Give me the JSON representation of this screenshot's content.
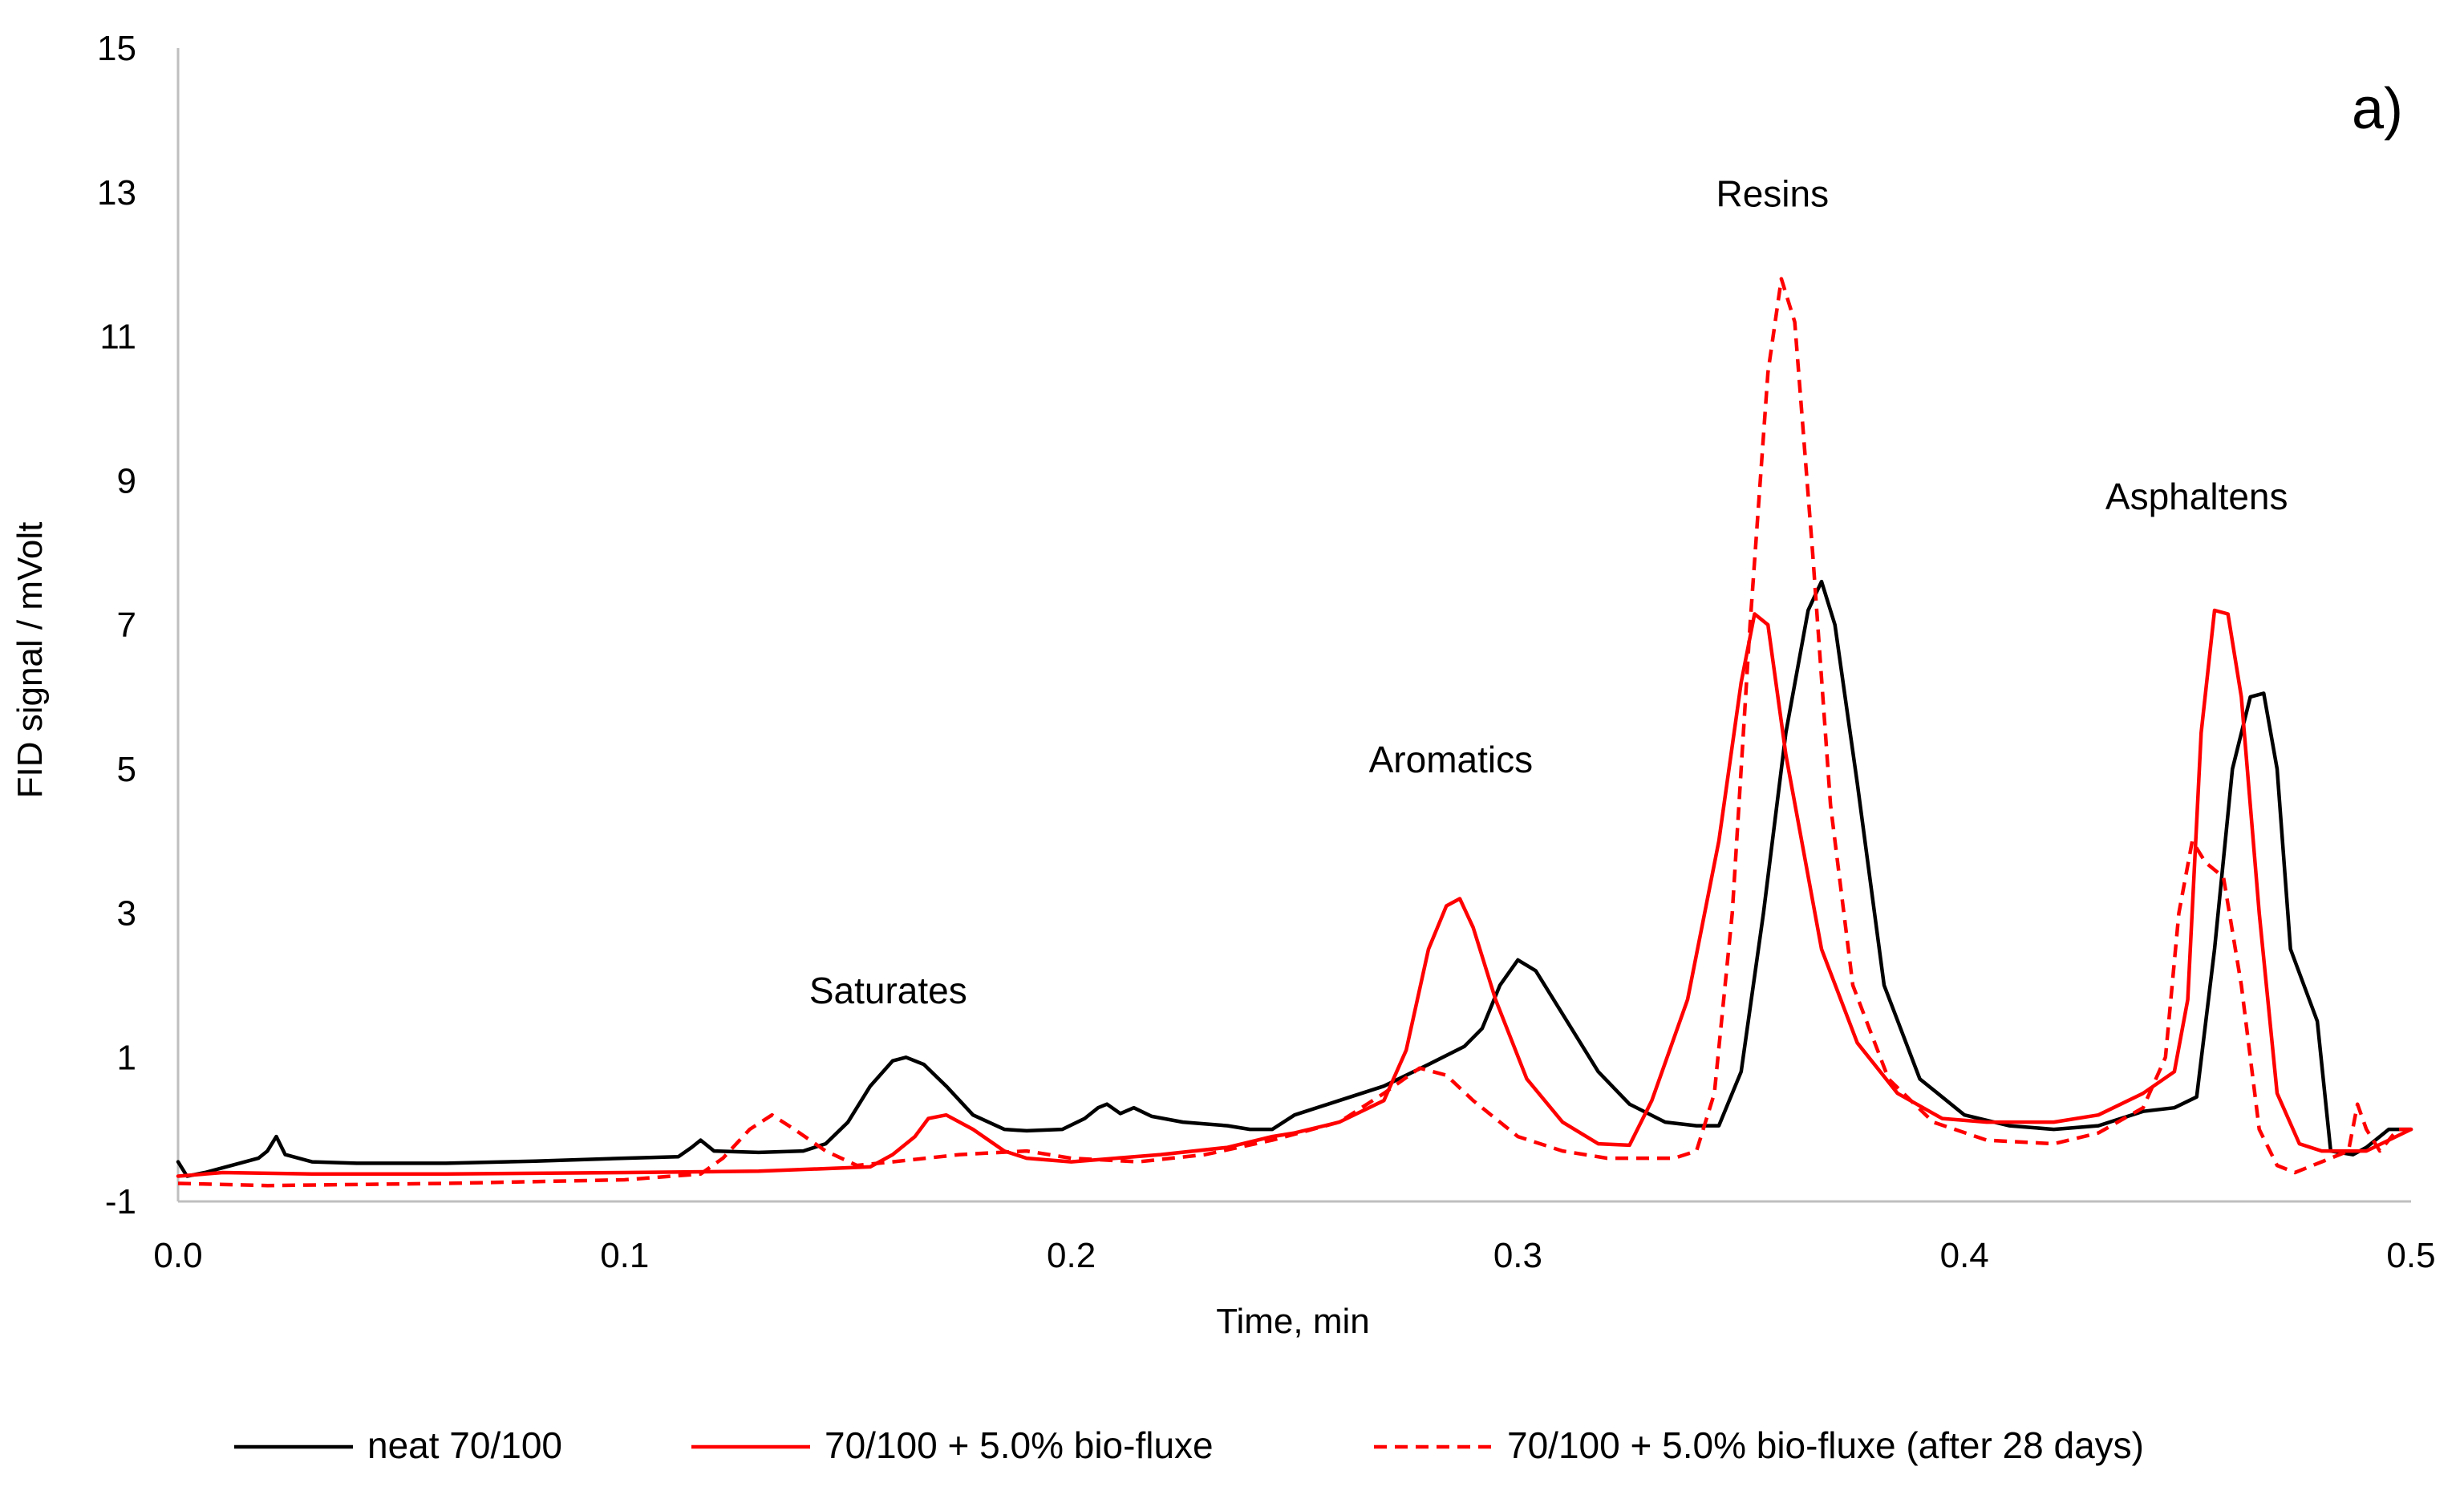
{
  "chart_data": {
    "type": "line",
    "title": "",
    "xlabel": "Time, min",
    "ylabel": "FID signal / mVolt",
    "xlim": [
      0,
      0.5
    ],
    "ylim": [
      -1,
      15
    ],
    "xticks": [
      0,
      0.1,
      0.2,
      0.3,
      0.4,
      0.5
    ],
    "xtick_labels": [
      "0.0",
      "0.1",
      "0.2",
      "0.3",
      "0.4",
      "0.5"
    ],
    "yticks": [
      -1,
      1,
      3,
      5,
      7,
      9,
      11,
      13,
      15
    ],
    "ytick_labels": [
      "-1",
      "1",
      "3",
      "5",
      "7",
      "9",
      "11",
      "13",
      "15"
    ],
    "grid": false,
    "legend_position": "bottom",
    "panel_label": "a)",
    "annotations": [
      {
        "text": "Saturates",
        "x": 0.159,
        "y": 1.75
      },
      {
        "text": "Aromatics",
        "x": 0.285,
        "y": 4.95
      },
      {
        "text": "Resins",
        "x": 0.357,
        "y": 12.8
      },
      {
        "text": "Asphaltens",
        "x": 0.452,
        "y": 8.6
      }
    ],
    "series": [
      {
        "name": "neat 70/100",
        "color": "#000000",
        "dash": "solid",
        "points": [
          [
            0,
            -0.45
          ],
          [
            0.002,
            -0.65
          ],
          [
            0.006,
            -0.6
          ],
          [
            0.012,
            -0.5
          ],
          [
            0.018,
            -0.4
          ],
          [
            0.02,
            -0.3
          ],
          [
            0.022,
            -0.1
          ],
          [
            0.024,
            -0.35
          ],
          [
            0.03,
            -0.45
          ],
          [
            0.04,
            -0.47
          ],
          [
            0.06,
            -0.47
          ],
          [
            0.08,
            -0.44
          ],
          [
            0.1,
            -0.4
          ],
          [
            0.112,
            -0.38
          ],
          [
            0.115,
            -0.25
          ],
          [
            0.117,
            -0.15
          ],
          [
            0.12,
            -0.3
          ],
          [
            0.13,
            -0.32
          ],
          [
            0.14,
            -0.3
          ],
          [
            0.145,
            -0.2
          ],
          [
            0.15,
            0.1
          ],
          [
            0.155,
            0.6
          ],
          [
            0.16,
            0.95
          ],
          [
            0.163,
            1.0
          ],
          [
            0.167,
            0.9
          ],
          [
            0.172,
            0.6
          ],
          [
            0.178,
            0.2
          ],
          [
            0.185,
            0.0
          ],
          [
            0.19,
            -0.02
          ],
          [
            0.198,
            0.0
          ],
          [
            0.203,
            0.15
          ],
          [
            0.206,
            0.3
          ],
          [
            0.208,
            0.35
          ],
          [
            0.211,
            0.22
          ],
          [
            0.214,
            0.3
          ],
          [
            0.218,
            0.18
          ],
          [
            0.225,
            0.1
          ],
          [
            0.235,
            0.05
          ],
          [
            0.24,
            0.0
          ],
          [
            0.245,
            0.0
          ],
          [
            0.25,
            0.2
          ],
          [
            0.26,
            0.4
          ],
          [
            0.27,
            0.6
          ],
          [
            0.28,
            0.9
          ],
          [
            0.288,
            1.15
          ],
          [
            0.292,
            1.4
          ],
          [
            0.296,
            2.0
          ],
          [
            0.3,
            2.35
          ],
          [
            0.304,
            2.2
          ],
          [
            0.31,
            1.6
          ],
          [
            0.318,
            0.8
          ],
          [
            0.325,
            0.35
          ],
          [
            0.333,
            0.1
          ],
          [
            0.34,
            0.05
          ],
          [
            0.345,
            0.05
          ],
          [
            0.35,
            0.8
          ],
          [
            0.355,
            3.0
          ],
          [
            0.36,
            5.5
          ],
          [
            0.365,
            7.2
          ],
          [
            0.368,
            7.6
          ],
          [
            0.371,
            7.0
          ],
          [
            0.376,
            4.8
          ],
          [
            0.382,
            2.0
          ],
          [
            0.39,
            0.7
          ],
          [
            0.4,
            0.2
          ],
          [
            0.41,
            0.05
          ],
          [
            0.42,
            0.0
          ],
          [
            0.43,
            0.05
          ],
          [
            0.44,
            0.25
          ],
          [
            0.447,
            0.3
          ],
          [
            0.452,
            0.45
          ],
          [
            0.456,
            2.5
          ],
          [
            0.46,
            5.0
          ],
          [
            0.464,
            6.0
          ],
          [
            0.467,
            6.05
          ],
          [
            0.47,
            5.0
          ],
          [
            0.473,
            2.5
          ],
          [
            0.476,
            2.0
          ],
          [
            0.479,
            1.5
          ],
          [
            0.482,
            -0.3
          ],
          [
            0.487,
            -0.35
          ],
          [
            0.49,
            -0.25
          ],
          [
            0.495,
            0.0
          ],
          [
            0.5,
            0.0
          ]
        ]
      },
      {
        "name": "70/100 + 5.0% bio-fluxe",
        "color": "#ff0000",
        "dash": "solid",
        "points": [
          [
            0,
            -0.65
          ],
          [
            0.01,
            -0.6
          ],
          [
            0.03,
            -0.62
          ],
          [
            0.06,
            -0.62
          ],
          [
            0.1,
            -0.6
          ],
          [
            0.13,
            -0.58
          ],
          [
            0.155,
            -0.52
          ],
          [
            0.16,
            -0.35
          ],
          [
            0.165,
            -0.1
          ],
          [
            0.168,
            0.15
          ],
          [
            0.172,
            0.2
          ],
          [
            0.178,
            0.0
          ],
          [
            0.185,
            -0.3
          ],
          [
            0.19,
            -0.4
          ],
          [
            0.2,
            -0.45
          ],
          [
            0.21,
            -0.4
          ],
          [
            0.22,
            -0.35
          ],
          [
            0.235,
            -0.25
          ],
          [
            0.245,
            -0.1
          ],
          [
            0.25,
            -0.05
          ],
          [
            0.26,
            0.1
          ],
          [
            0.27,
            0.4
          ],
          [
            0.275,
            1.1
          ],
          [
            0.28,
            2.5
          ],
          [
            0.284,
            3.1
          ],
          [
            0.287,
            3.2
          ],
          [
            0.29,
            2.8
          ],
          [
            0.295,
            1.8
          ],
          [
            0.302,
            0.7
          ],
          [
            0.31,
            0.1
          ],
          [
            0.318,
            -0.2
          ],
          [
            0.325,
            -0.22
          ],
          [
            0.33,
            0.4
          ],
          [
            0.338,
            1.8
          ],
          [
            0.345,
            4.0
          ],
          [
            0.35,
            6.2
          ],
          [
            0.353,
            7.15
          ],
          [
            0.356,
            7.0
          ],
          [
            0.36,
            5.2
          ],
          [
            0.368,
            2.5
          ],
          [
            0.376,
            1.2
          ],
          [
            0.385,
            0.5
          ],
          [
            0.395,
            0.15
          ],
          [
            0.405,
            0.1
          ],
          [
            0.42,
            0.1
          ],
          [
            0.43,
            0.2
          ],
          [
            0.44,
            0.5
          ],
          [
            0.447,
            0.8
          ],
          [
            0.45,
            1.8
          ],
          [
            0.453,
            5.5
          ],
          [
            0.456,
            7.2
          ],
          [
            0.459,
            7.15
          ],
          [
            0.462,
            6.0
          ],
          [
            0.466,
            3.0
          ],
          [
            0.47,
            0.5
          ],
          [
            0.475,
            -0.2
          ],
          [
            0.48,
            -0.3
          ],
          [
            0.49,
            -0.3
          ],
          [
            0.5,
            0.0
          ]
        ]
      },
      {
        "name": "70/100 + 5.0% bio-fluxe (after 28 days)",
        "color": "#ff0000",
        "dash": "dashed",
        "points": [
          [
            0,
            -0.75
          ],
          [
            0.02,
            -0.78
          ],
          [
            0.06,
            -0.75
          ],
          [
            0.1,
            -0.7
          ],
          [
            0.117,
            -0.62
          ],
          [
            0.122,
            -0.4
          ],
          [
            0.128,
            0.0
          ],
          [
            0.133,
            0.2
          ],
          [
            0.138,
            0.0
          ],
          [
            0.145,
            -0.3
          ],
          [
            0.152,
            -0.5
          ],
          [
            0.16,
            -0.45
          ],
          [
            0.175,
            -0.35
          ],
          [
            0.19,
            -0.3
          ],
          [
            0.2,
            -0.4
          ],
          [
            0.215,
            -0.45
          ],
          [
            0.23,
            -0.35
          ],
          [
            0.245,
            -0.15
          ],
          [
            0.26,
            0.1
          ],
          [
            0.27,
            0.5
          ],
          [
            0.278,
            0.85
          ],
          [
            0.284,
            0.75
          ],
          [
            0.29,
            0.4
          ],
          [
            0.3,
            -0.1
          ],
          [
            0.31,
            -0.3
          ],
          [
            0.32,
            -0.4
          ],
          [
            0.335,
            -0.4
          ],
          [
            0.34,
            -0.3
          ],
          [
            0.344,
            0.5
          ],
          [
            0.348,
            3.0
          ],
          [
            0.352,
            7.0
          ],
          [
            0.356,
            10.5
          ],
          [
            0.359,
            11.8
          ],
          [
            0.362,
            11.2
          ],
          [
            0.366,
            8.0
          ],
          [
            0.37,
            4.5
          ],
          [
            0.375,
            2.0
          ],
          [
            0.383,
            0.7
          ],
          [
            0.393,
            0.1
          ],
          [
            0.405,
            -0.15
          ],
          [
            0.42,
            -0.2
          ],
          [
            0.43,
            -0.05
          ],
          [
            0.44,
            0.3
          ],
          [
            0.445,
            1.0
          ],
          [
            0.448,
            3.0
          ],
          [
            0.451,
            4.0
          ],
          [
            0.454,
            3.7
          ],
          [
            0.458,
            3.5
          ],
          [
            0.462,
            2.0
          ],
          [
            0.466,
            0.0
          ],
          [
            0.47,
            -0.5
          ],
          [
            0.474,
            -0.6
          ],
          [
            0.48,
            -0.45
          ],
          [
            0.486,
            -0.3
          ],
          [
            0.488,
            0.35
          ],
          [
            0.49,
            0.0
          ],
          [
            0.493,
            -0.3
          ],
          [
            0.497,
            0.0
          ],
          [
            0.5,
            0.0
          ]
        ]
      }
    ]
  }
}
